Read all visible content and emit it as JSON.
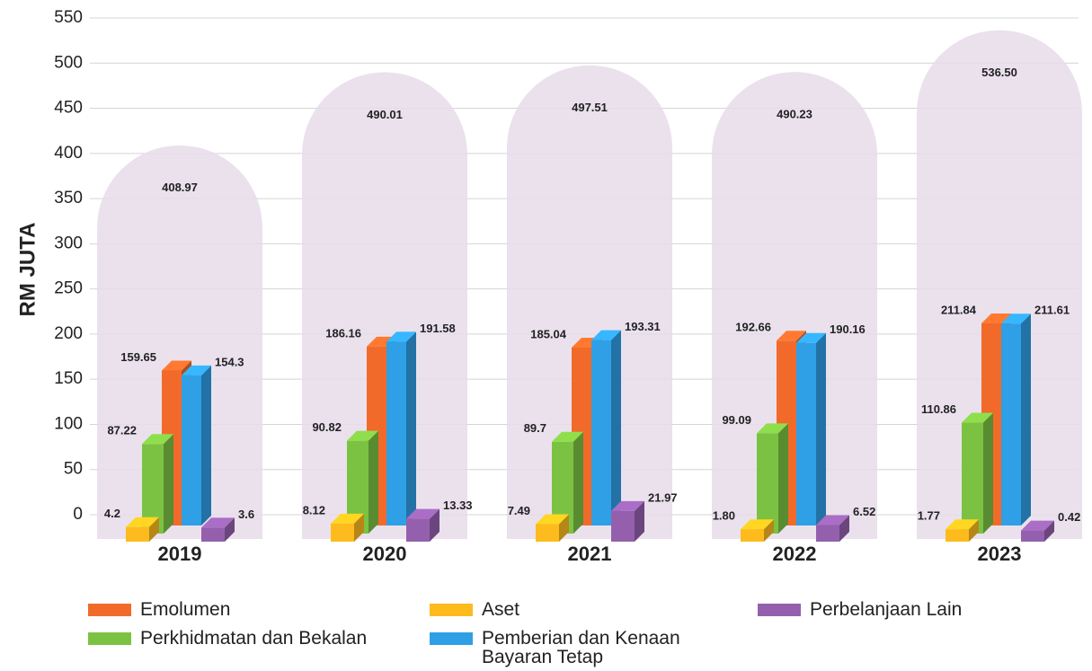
{
  "chart_data": {
    "type": "bar3d",
    "y_label": "RM JUTA",
    "categories": [
      "2019",
      "2020",
      "2021",
      "2022",
      "2023"
    ],
    "totals": [
      408.97,
      490.01,
      497.51,
      490.23,
      536.5
    ],
    "totals_labels": [
      "408.97",
      "490.01",
      "497.51",
      "490.23",
      "536.50"
    ],
    "totals_color": "#e6dcea",
    "series": [
      {
        "name": "Emolumen",
        "color": "#f26a2a",
        "values": [
          159.65,
          186.16,
          185.04,
          192.66,
          211.84
        ]
      },
      {
        "name": "Perkhidmatan dan Bekalan",
        "color": "#7cc242",
        "values": [
          87.22,
          90.82,
          89.7,
          99.09,
          110.86
        ]
      },
      {
        "name": "Aset",
        "color": "#fdbb1e",
        "values": [
          4.2,
          8.12,
          7.49,
          1.8,
          1.77
        ],
        "value_labels": [
          "4.2",
          "8.12",
          "7.49",
          "1.80",
          "1.77"
        ]
      },
      {
        "name": "Pemberian dan Kenaan Bayaran Tetap",
        "color": "#2f9fe6",
        "values": [
          154.3,
          191.58,
          193.31,
          190.16,
          211.61
        ]
      },
      {
        "name": "Perbelanjaan Lain",
        "color": "#9460ad",
        "values": [
          3.6,
          13.33,
          21.97,
          6.52,
          0.42
        ]
      }
    ],
    "ylim": [
      0,
      550
    ],
    "yticks": [
      0,
      50,
      100,
      150,
      200,
      250,
      300,
      350,
      400,
      450,
      500,
      550
    ],
    "grid": true
  }
}
